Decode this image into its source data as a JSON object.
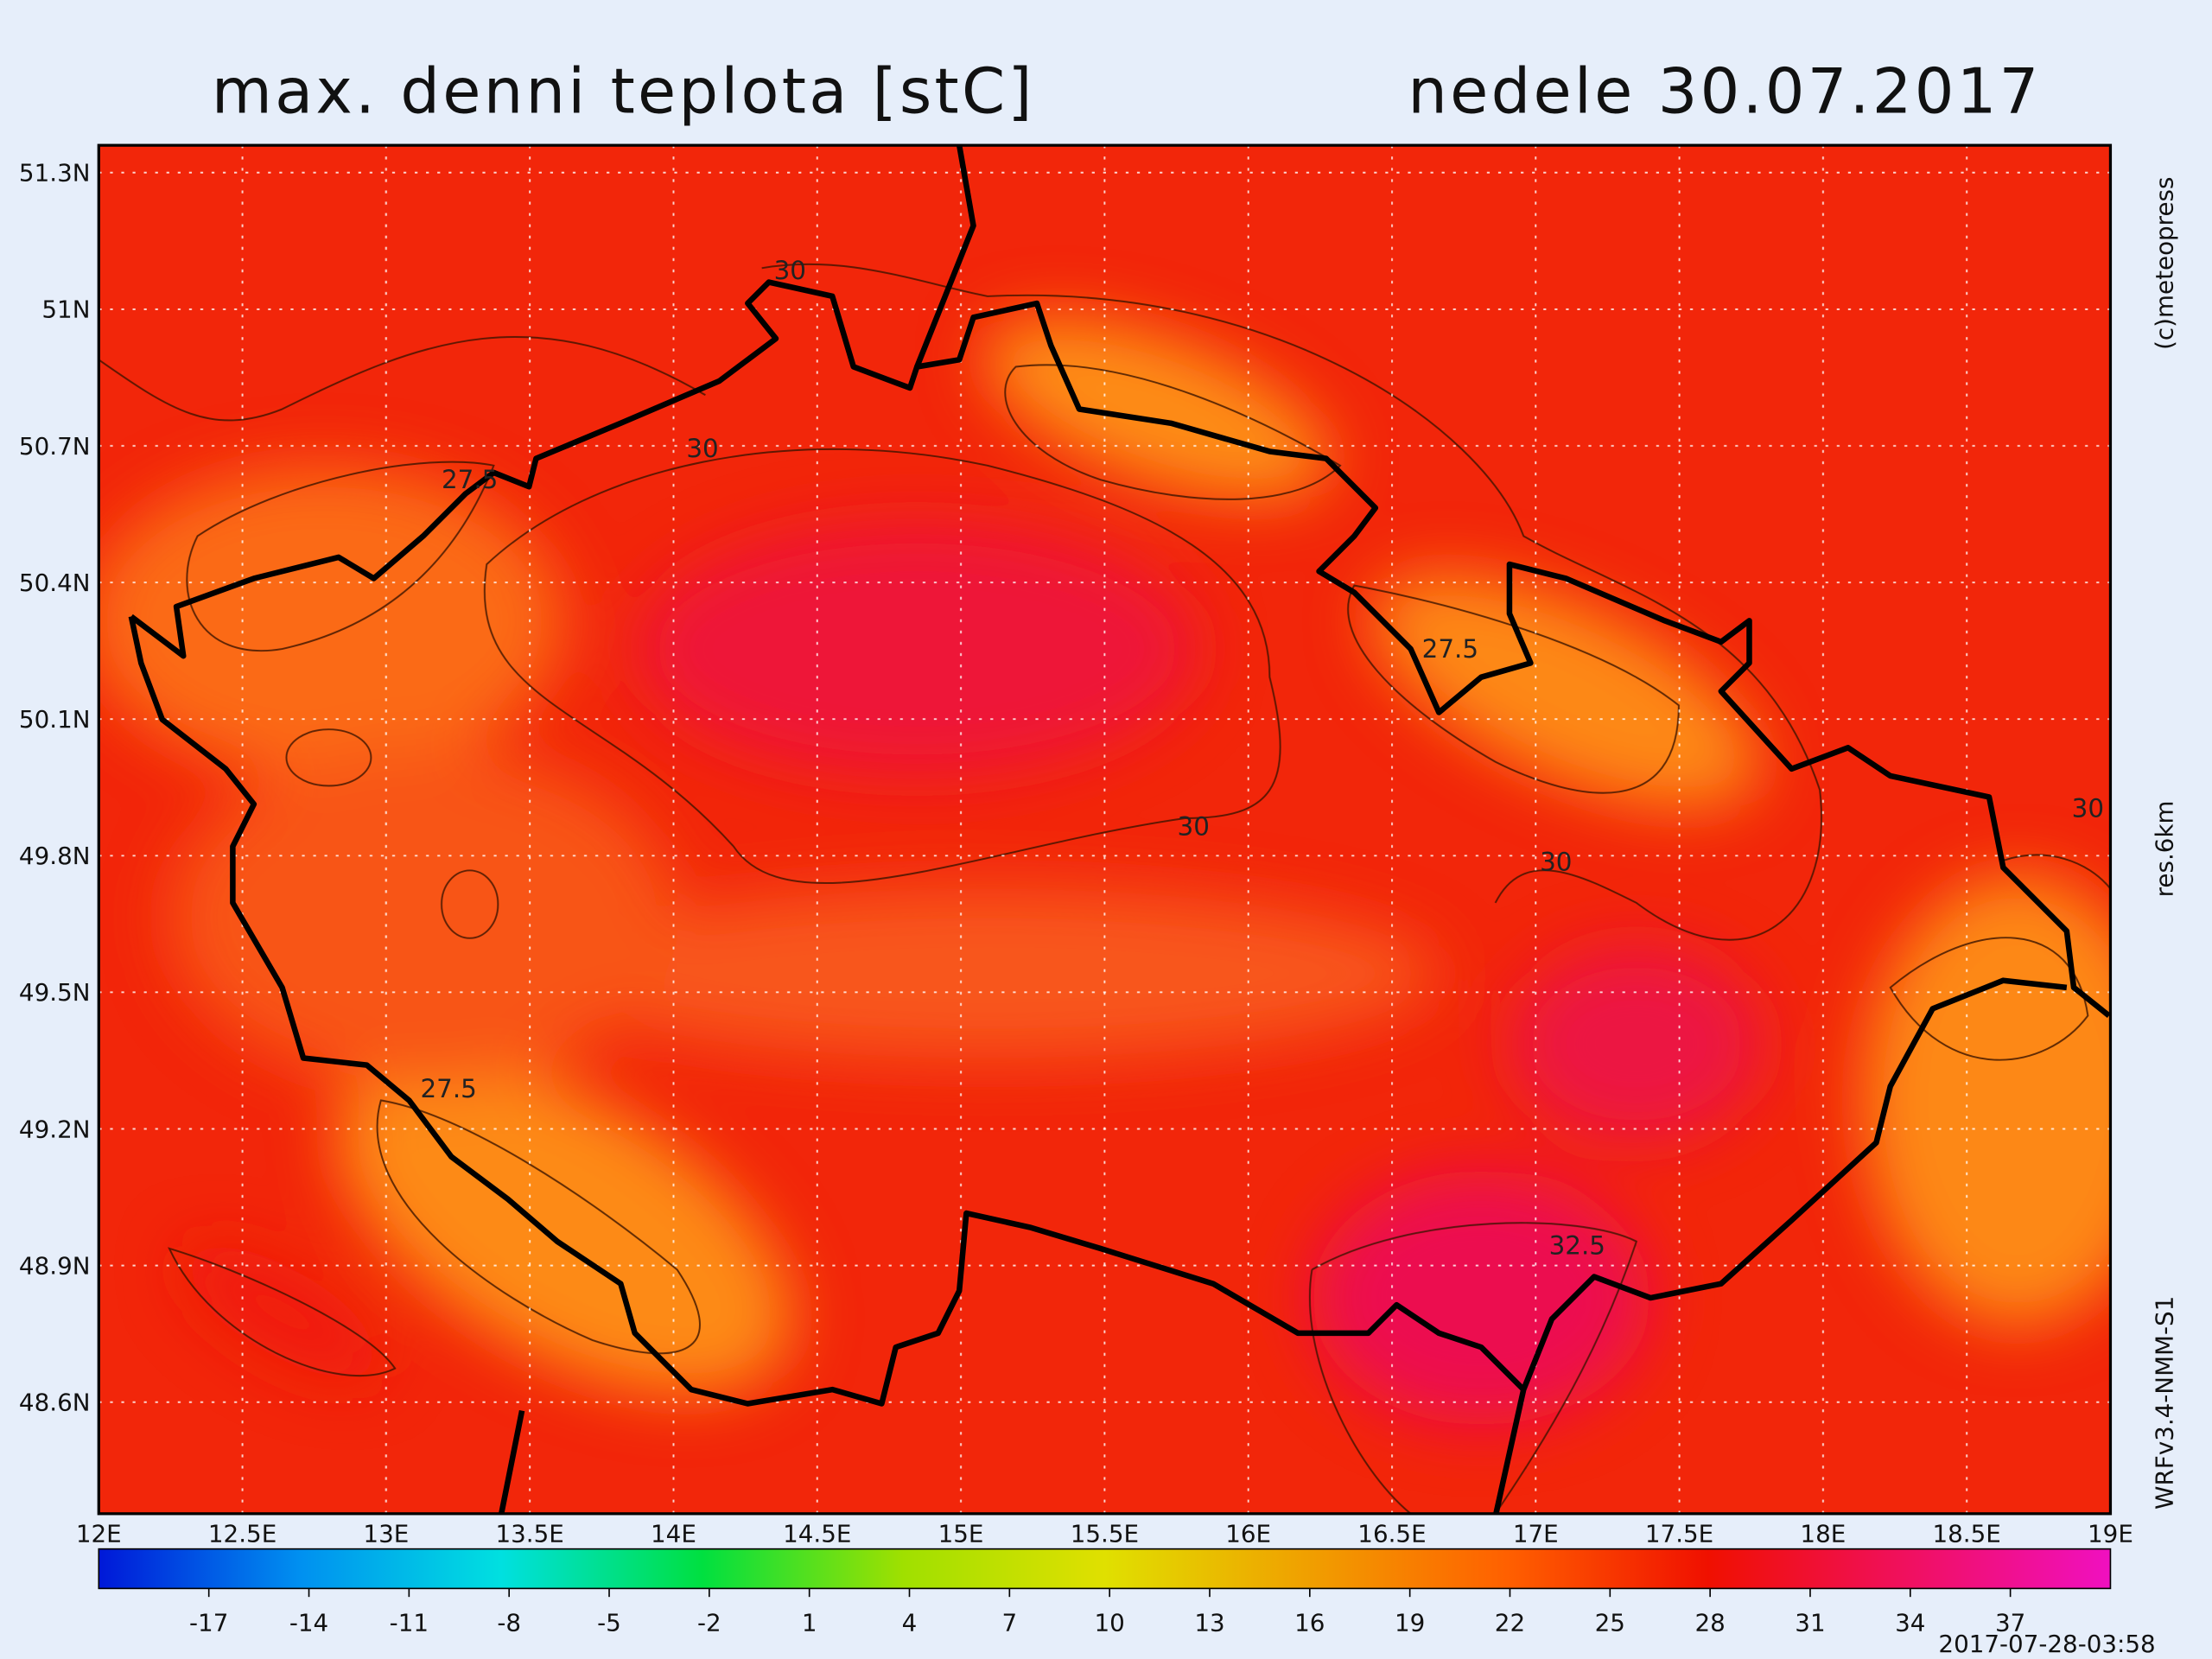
{
  "header": {
    "title": "max. denni teplota [stC]",
    "date": "nedele 30.07.2017"
  },
  "map": {
    "xlim": [
      12,
      19
    ],
    "ylim": [
      48.355,
      51.36
    ],
    "lat_ticks": [
      {
        "value": 51.3,
        "label": "51.3N"
      },
      {
        "value": 51,
        "label": "51N"
      },
      {
        "value": 50.7,
        "label": "50.7N"
      },
      {
        "value": 50.4,
        "label": "50.4N"
      },
      {
        "value": 50.1,
        "label": "50.1N"
      },
      {
        "value": 49.8,
        "label": "49.8N"
      },
      {
        "value": 49.5,
        "label": "49.5N"
      },
      {
        "value": 49.2,
        "label": "49.2N"
      },
      {
        "value": 48.9,
        "label": "48.9N"
      },
      {
        "value": 48.6,
        "label": "48.6N"
      }
    ],
    "lon_ticks": [
      {
        "value": 12,
        "label": "12E"
      },
      {
        "value": 12.5,
        "label": "12.5E"
      },
      {
        "value": 13,
        "label": "13E"
      },
      {
        "value": 13.5,
        "label": "13.5E"
      },
      {
        "value": 14,
        "label": "14E"
      },
      {
        "value": 14.5,
        "label": "14.5E"
      },
      {
        "value": 15,
        "label": "15E"
      },
      {
        "value": 15.5,
        "label": "15.5E"
      },
      {
        "value": 16,
        "label": "16E"
      },
      {
        "value": 16.5,
        "label": "16.5E"
      },
      {
        "value": 17,
        "label": "17E"
      },
      {
        "value": 17.5,
        "label": "17.5E"
      },
      {
        "value": 18,
        "label": "18E"
      },
      {
        "value": 18.5,
        "label": "18.5E"
      },
      {
        "value": 19,
        "label": "19E"
      }
    ],
    "contour_labels": [
      30,
      30,
      27.5,
      27.5,
      30,
      30,
      30,
      27.5,
      32.5
    ]
  },
  "colorbar": {
    "range": [
      -20.3,
      40
    ],
    "ticks": [
      -17,
      -14,
      -11,
      -8,
      -5,
      -2,
      1,
      4,
      7,
      10,
      13,
      16,
      19,
      22,
      25,
      28,
      31,
      34,
      37
    ],
    "colors": [
      "#0018d8",
      "#0090f0",
      "#00e0e0",
      "#00e040",
      "#a0e000",
      "#e0e000",
      "#f0a000",
      "#ff6000",
      "#f01000",
      "#f01060",
      "#f010c0"
    ]
  },
  "credits": {
    "copyright": "(c)meteopress",
    "resolution": "res.6km",
    "model": "WRFv3.4-NMM-S1",
    "issued": "2017-07-28-03:58"
  }
}
